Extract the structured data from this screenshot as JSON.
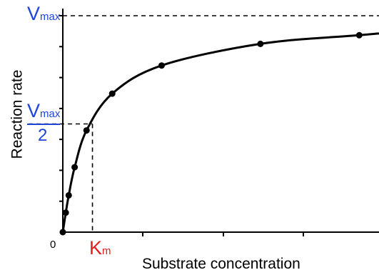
{
  "chart_data": {
    "type": "line",
    "title": "",
    "xlabel": "Substrate concentration",
    "ylabel": "Reaction rate",
    "origin_label": "0",
    "vmax_label": {
      "main": "V",
      "sub": "max"
    },
    "vmax_half_label": {
      "main": "V",
      "sub": "max",
      "denominator": "2"
    },
    "km_label": {
      "main": "K",
      "sub": "m"
    },
    "vmax": 1.0,
    "km": 0.15,
    "xlim": [
      0,
      1.6
    ],
    "ylim": [
      0,
      1.0
    ],
    "grid": false,
    "series": [
      {
        "x": [
          0,
          0.015,
          0.03,
          0.06,
          0.12,
          0.25,
          0.5,
          1.0,
          1.5
        ],
        "y": [
          0.0,
          0.09,
          0.17,
          0.3,
          0.47,
          0.64,
          0.77,
          0.87,
          0.91
        ]
      }
    ],
    "colors": {
      "curve": "#000000",
      "vmax_text": "#1f45d8",
      "km_text": "#e01f1f"
    }
  }
}
